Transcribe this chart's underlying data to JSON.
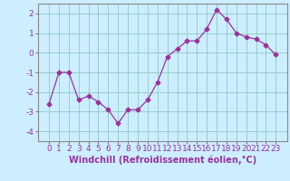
{
  "x": [
    0,
    1,
    2,
    3,
    4,
    5,
    6,
    7,
    8,
    9,
    10,
    11,
    12,
    13,
    14,
    15,
    16,
    17,
    18,
    19,
    20,
    21,
    22,
    23
  ],
  "y": [
    -2.6,
    -1.0,
    -1.0,
    -2.4,
    -2.2,
    -2.5,
    -2.9,
    -3.6,
    -2.9,
    -2.9,
    -2.4,
    -1.5,
    -0.2,
    0.2,
    0.6,
    0.6,
    1.2,
    2.2,
    1.7,
    1.0,
    0.8,
    0.7,
    0.4,
    -0.1
  ],
  "line_color": "#993399",
  "marker": "D",
  "marker_size": 2.5,
  "bg_color": "#cceeff",
  "grid_color": "#99cccc",
  "xlabel": "Windchill (Refroidissement éolien,°C)",
  "ylim": [
    -4.5,
    2.5
  ],
  "yticks": [
    -4,
    -3,
    -2,
    -1,
    0,
    1,
    2
  ],
  "xticks": [
    0,
    1,
    2,
    3,
    4,
    5,
    6,
    7,
    8,
    9,
    10,
    11,
    12,
    13,
    14,
    15,
    16,
    17,
    18,
    19,
    20,
    21,
    22,
    23
  ],
  "xlabel_fontsize": 7,
  "tick_fontsize": 6.5,
  "tick_color": "#993399",
  "spine_color": "#888888"
}
